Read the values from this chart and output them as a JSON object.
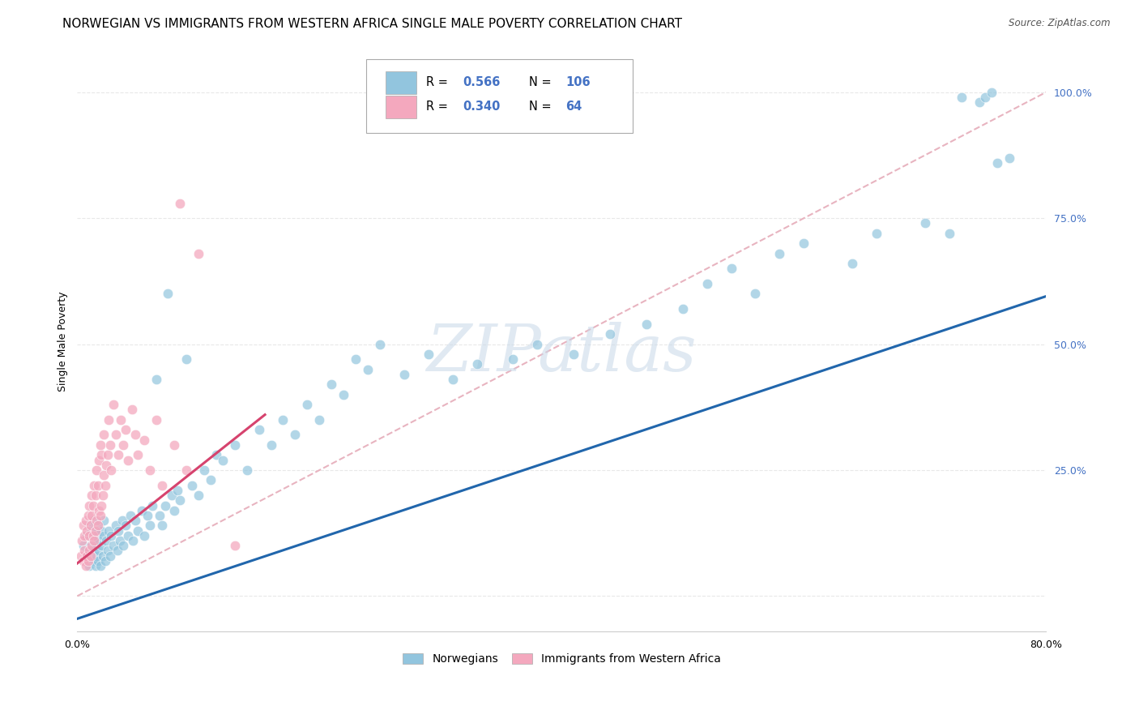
{
  "title": "NORWEGIAN VS IMMIGRANTS FROM WESTERN AFRICA SINGLE MALE POVERTY CORRELATION CHART",
  "source": "Source: ZipAtlas.com",
  "ylabel": "Single Male Poverty",
  "yticks": [
    0.0,
    0.25,
    0.5,
    0.75,
    1.0
  ],
  "ytick_labels": [
    "",
    "25.0%",
    "50.0%",
    "75.0%",
    "100.0%"
  ],
  "xlim": [
    0.0,
    0.8
  ],
  "ylim": [
    -0.07,
    1.08
  ],
  "norwegian_R": 0.566,
  "norwegian_N": 106,
  "immigrant_R": 0.34,
  "immigrant_N": 64,
  "norwegian_color": "#92c5de",
  "immigrant_color": "#f4a8be",
  "norwegian_line_color": "#2166ac",
  "immigrant_line_color": "#d6436e",
  "diag_line_color": "#e8b4c0",
  "background_color": "#ffffff",
  "grid_color": "#e8e8e8",
  "watermark": "ZIPatlas",
  "legend_label_norwegian": "Norwegians",
  "legend_label_immigrant": "Immigrants from Western Africa",
  "title_fontsize": 11,
  "axis_label_fontsize": 9,
  "tick_fontsize": 9,
  "nor_line_x0": 0.0,
  "nor_line_y0": -0.045,
  "nor_line_x1": 0.8,
  "nor_line_y1": 0.595,
  "imm_line_x0": 0.0,
  "imm_line_y0": 0.065,
  "imm_line_x1": 0.155,
  "imm_line_y1": 0.36,
  "norwegian_x": [
    0.005,
    0.007,
    0.008,
    0.009,
    0.01,
    0.01,
    0.011,
    0.012,
    0.012,
    0.013,
    0.013,
    0.014,
    0.014,
    0.015,
    0.015,
    0.015,
    0.016,
    0.016,
    0.017,
    0.017,
    0.018,
    0.018,
    0.019,
    0.02,
    0.02,
    0.021,
    0.022,
    0.022,
    0.023,
    0.024,
    0.025,
    0.026,
    0.027,
    0.028,
    0.03,
    0.032,
    0.033,
    0.034,
    0.035,
    0.037,
    0.038,
    0.04,
    0.042,
    0.044,
    0.046,
    0.048,
    0.05,
    0.053,
    0.055,
    0.058,
    0.06,
    0.062,
    0.065,
    0.068,
    0.07,
    0.073,
    0.075,
    0.078,
    0.08,
    0.083,
    0.085,
    0.09,
    0.095,
    0.1,
    0.105,
    0.11,
    0.115,
    0.12,
    0.13,
    0.14,
    0.15,
    0.16,
    0.17,
    0.18,
    0.19,
    0.2,
    0.21,
    0.22,
    0.23,
    0.24,
    0.25,
    0.27,
    0.29,
    0.31,
    0.33,
    0.36,
    0.38,
    0.41,
    0.44,
    0.47,
    0.5,
    0.52,
    0.54,
    0.56,
    0.58,
    0.6,
    0.64,
    0.66,
    0.7,
    0.72,
    0.73,
    0.745,
    0.75,
    0.755,
    0.76,
    0.77
  ],
  "norwegian_y": [
    0.1,
    0.08,
    0.12,
    0.09,
    0.06,
    0.14,
    0.1,
    0.08,
    0.13,
    0.07,
    0.11,
    0.09,
    0.15,
    0.06,
    0.1,
    0.13,
    0.08,
    0.12,
    0.07,
    0.11,
    0.09,
    0.14,
    0.06,
    0.1,
    0.13,
    0.08,
    0.12,
    0.15,
    0.07,
    0.11,
    0.09,
    0.13,
    0.08,
    0.12,
    0.1,
    0.14,
    0.09,
    0.13,
    0.11,
    0.15,
    0.1,
    0.14,
    0.12,
    0.16,
    0.11,
    0.15,
    0.13,
    0.17,
    0.12,
    0.16,
    0.14,
    0.18,
    0.43,
    0.16,
    0.14,
    0.18,
    0.6,
    0.2,
    0.17,
    0.21,
    0.19,
    0.47,
    0.22,
    0.2,
    0.25,
    0.23,
    0.28,
    0.27,
    0.3,
    0.25,
    0.33,
    0.3,
    0.35,
    0.32,
    0.38,
    0.35,
    0.42,
    0.4,
    0.47,
    0.45,
    0.5,
    0.44,
    0.48,
    0.43,
    0.46,
    0.47,
    0.5,
    0.48,
    0.52,
    0.54,
    0.57,
    0.62,
    0.65,
    0.6,
    0.68,
    0.7,
    0.66,
    0.72,
    0.74,
    0.72,
    0.99,
    0.98,
    0.99,
    1.0,
    0.86,
    0.87
  ],
  "immigrant_x": [
    0.003,
    0.004,
    0.005,
    0.005,
    0.006,
    0.006,
    0.007,
    0.007,
    0.008,
    0.008,
    0.009,
    0.009,
    0.01,
    0.01,
    0.01,
    0.011,
    0.011,
    0.012,
    0.012,
    0.012,
    0.013,
    0.013,
    0.014,
    0.014,
    0.015,
    0.015,
    0.016,
    0.016,
    0.017,
    0.017,
    0.018,
    0.018,
    0.019,
    0.019,
    0.02,
    0.02,
    0.021,
    0.022,
    0.022,
    0.023,
    0.024,
    0.025,
    0.026,
    0.027,
    0.028,
    0.03,
    0.032,
    0.034,
    0.036,
    0.038,
    0.04,
    0.042,
    0.045,
    0.048,
    0.05,
    0.055,
    0.06,
    0.065,
    0.07,
    0.08,
    0.085,
    0.09,
    0.1,
    0.13
  ],
  "immigrant_y": [
    0.08,
    0.11,
    0.07,
    0.14,
    0.09,
    0.12,
    0.06,
    0.15,
    0.08,
    0.13,
    0.07,
    0.16,
    0.09,
    0.12,
    0.18,
    0.08,
    0.14,
    0.1,
    0.16,
    0.2,
    0.12,
    0.18,
    0.11,
    0.22,
    0.13,
    0.2,
    0.15,
    0.25,
    0.14,
    0.22,
    0.17,
    0.27,
    0.16,
    0.3,
    0.18,
    0.28,
    0.2,
    0.24,
    0.32,
    0.22,
    0.26,
    0.28,
    0.35,
    0.3,
    0.25,
    0.38,
    0.32,
    0.28,
    0.35,
    0.3,
    0.33,
    0.27,
    0.37,
    0.32,
    0.28,
    0.31,
    0.25,
    0.35,
    0.22,
    0.3,
    0.78,
    0.25,
    0.68,
    0.1
  ]
}
